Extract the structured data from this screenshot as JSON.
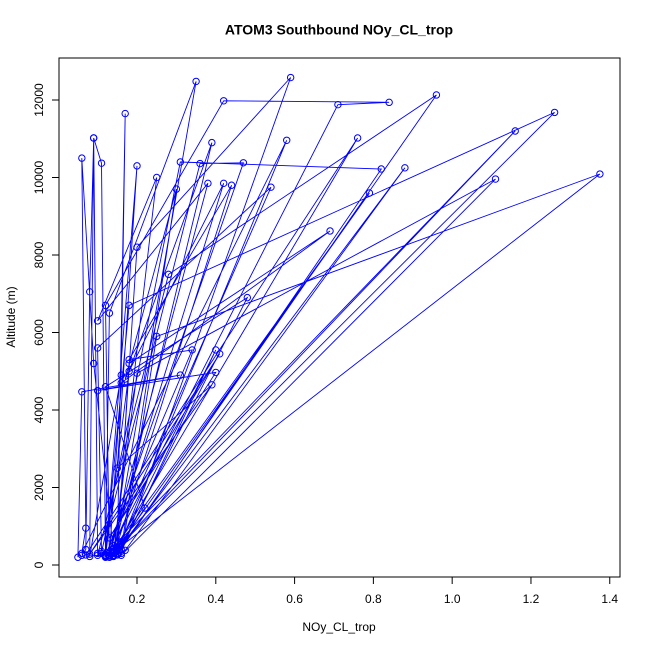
{
  "chart_data": {
    "type": "scatter",
    "lines": true,
    "title": "ATOM3 Southbound NOy_CL_trop",
    "xlabel": "NOy_CL_trop",
    "ylabel": "Altitude (m)",
    "xlim": [
      0.002,
      1.426
    ],
    "ylim": [
      -310,
      13084
    ],
    "xticks": [
      0.2,
      0.4,
      0.6,
      0.8,
      {
        "value": 1,
        "label": "1.0"
      },
      1.2,
      1.4
    ],
    "yticks": [
      0,
      2000,
      4000,
      6000,
      8000,
      10000,
      12000
    ],
    "grid": false,
    "series": [
      {
        "color": "#0000ff",
        "x": [
          0.06,
          0.07,
          0.08,
          0.09,
          0.1,
          0.12,
          0.13,
          0.35,
          0.14,
          0.15,
          0.2,
          0.59,
          0.16,
          0.13,
          0.12,
          0.42,
          0.84,
          0.71,
          0.14,
          0.1,
          0.28,
          0.96,
          0.15,
          0.17,
          0.16,
          0.08,
          0.09,
          0.11,
          0.12,
          0.14,
          0.39,
          0.18,
          0.12,
          0.07,
          0.76,
          0.14,
          0.09,
          0.06,
          0.07,
          0.06,
          0.58,
          0.16,
          0.13,
          1.26,
          0.18,
          0.12,
          1.16,
          0.15,
          0.11,
          0.31,
          0.82,
          0.15,
          0.14,
          0.88,
          0.17,
          0.13,
          1.375,
          0.25,
          0.16,
          1.11,
          0.2,
          0.14,
          0.79,
          0.15,
          0.12,
          0.47,
          0.36,
          0.11,
          0.1,
          0.54,
          0.13,
          0.16,
          0.69,
          0.18,
          0.15,
          0.48,
          0.12,
          0.22,
          0.14,
          0.4,
          0.16,
          0.3,
          0.17,
          0.42,
          0.13,
          0.38,
          0.1,
          0.25,
          0.14,
          0.44,
          0.18,
          0.34,
          0.12,
          0.2,
          0.15,
          0.39,
          0.08,
          0.41,
          0.13,
          0.4,
          0.1,
          0.31,
          0.06,
          0.05
        ],
        "y": [
          250,
          400,
          7050,
          11020,
          300,
          220,
          6500,
          12480,
          250,
          400,
          8200,
          12580,
          300,
          200,
          6700,
          11980,
          11940,
          11880,
          500,
          250,
          7500,
          12130,
          300,
          11650,
          4900,
          220,
          11020,
          10370,
          240,
          300,
          10900,
          5000,
          230,
          260,
          11020,
          350,
          5200,
          10500,
          950,
          300,
          10960,
          600,
          230,
          11680,
          6700,
          250,
          11200,
          450,
          300,
          10400,
          10220,
          260,
          220,
          10250,
          380,
          250,
          10090,
          5900,
          250,
          9960,
          4950,
          300,
          9600,
          550,
          200,
          10380,
          10360,
          350,
          5600,
          9750,
          250,
          4700,
          8620,
          5200,
          270,
          6900,
          4600,
          1470,
          250,
          5550,
          400,
          9700,
          4800,
          9850,
          300,
          9850,
          6300,
          10000,
          230,
          9800,
          5300,
          5550,
          260,
          10300,
          2500,
          4650,
          280,
          5450,
          700,
          4970,
          4500,
          4900,
          4470,
          200
        ]
      }
    ]
  }
}
